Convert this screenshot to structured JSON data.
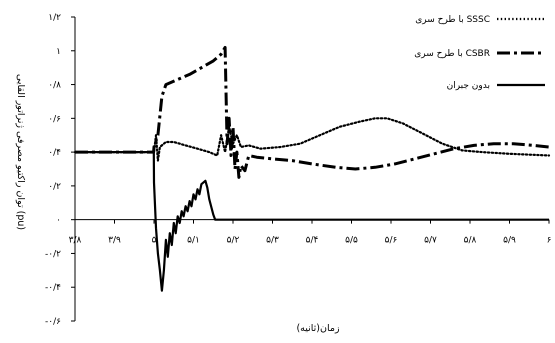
{
  "chart_data": {
    "type": "line",
    "title": "",
    "xlabel": "زمان(ثانیه)",
    "ylabel": "توان راکتیو مصرفی ژنراتور القایی (pu)",
    "xlim": [
      3.8,
      6
    ],
    "ylim": [
      -0.6,
      1.2
    ],
    "x_ticks": [
      3.8,
      3.9,
      5.0,
      5.1,
      5.2,
      5.3,
      5.4,
      5.5,
      5.6,
      5.7,
      5.8,
      5.9,
      6.0
    ],
    "x_tick_labels": [
      "۳/۸",
      "۳/۹",
      "۵",
      "۵/۱",
      "۵/۲",
      "۵/۳",
      "۵/۴",
      "۵/۵",
      "۵/۶",
      "۵/۷",
      "۵/۸",
      "۵/۹",
      "۶"
    ],
    "y_ticks": [
      -0.6,
      -0.4,
      -0.2,
      0,
      0.2,
      0.4,
      0.6,
      0.8,
      1.0,
      1.2
    ],
    "y_tick_labels": [
      "-۰/۶",
      "-۰/۴",
      "-۰/۲",
      "۰",
      "۰/۲",
      "۰/۴",
      "۰/۶",
      "۰/۸",
      "۱",
      "۱/۲"
    ],
    "grid": false,
    "legend_position": "top-right",
    "series": [
      {
        "name": "با طرح سری SSSC",
        "style": "dotted",
        "color": "#000000",
        "points": [
          [
            3.8,
            0.4
          ],
          [
            4.9,
            0.4
          ],
          [
            4.99,
            0.4
          ],
          [
            5.0,
            0.4
          ],
          [
            5.005,
            0.5
          ],
          [
            5.01,
            0.35
          ],
          [
            5.015,
            0.43
          ],
          [
            5.03,
            0.46
          ],
          [
            5.05,
            0.46
          ],
          [
            5.08,
            0.44
          ],
          [
            5.11,
            0.42
          ],
          [
            5.14,
            0.4
          ],
          [
            5.16,
            0.38
          ],
          [
            5.17,
            0.5
          ],
          [
            5.18,
            0.4
          ],
          [
            5.19,
            0.55
          ],
          [
            5.2,
            0.45
          ],
          [
            5.21,
            0.5
          ],
          [
            5.22,
            0.43
          ],
          [
            5.24,
            0.44
          ],
          [
            5.27,
            0.42
          ],
          [
            5.32,
            0.43
          ],
          [
            5.37,
            0.45
          ],
          [
            5.42,
            0.5
          ],
          [
            5.47,
            0.55
          ],
          [
            5.52,
            0.58
          ],
          [
            5.56,
            0.6
          ],
          [
            5.59,
            0.6
          ],
          [
            5.63,
            0.57
          ],
          [
            5.68,
            0.51
          ],
          [
            5.73,
            0.45
          ],
          [
            5.78,
            0.41
          ],
          [
            5.83,
            0.4
          ],
          [
            5.9,
            0.39
          ],
          [
            6.0,
            0.38
          ]
        ]
      },
      {
        "name": "با طرح سری CSBR",
        "style": "dash-dot",
        "color": "#000000",
        "points": [
          [
            3.8,
            0.4
          ],
          [
            4.9,
            0.4
          ],
          [
            4.99,
            0.4
          ],
          [
            5.0,
            0.43
          ],
          [
            5.01,
            0.5
          ],
          [
            5.02,
            0.73
          ],
          [
            5.03,
            0.8
          ],
          [
            5.06,
            0.83
          ],
          [
            5.09,
            0.86
          ],
          [
            5.12,
            0.9
          ],
          [
            5.15,
            0.94
          ],
          [
            5.17,
            0.98
          ],
          [
            5.18,
            1.02
          ],
          [
            5.185,
            0.45
          ],
          [
            5.19,
            0.6
          ],
          [
            5.195,
            0.38
          ],
          [
            5.2,
            0.55
          ],
          [
            5.205,
            0.3
          ],
          [
            5.21,
            0.4
          ],
          [
            5.215,
            0.25
          ],
          [
            5.22,
            0.32
          ],
          [
            5.23,
            0.29
          ],
          [
            5.24,
            0.38
          ],
          [
            5.26,
            0.37
          ],
          [
            5.3,
            0.36
          ],
          [
            5.35,
            0.35
          ],
          [
            5.4,
            0.33
          ],
          [
            5.46,
            0.31
          ],
          [
            5.51,
            0.3
          ],
          [
            5.56,
            0.31
          ],
          [
            5.61,
            0.33
          ],
          [
            5.66,
            0.36
          ],
          [
            5.71,
            0.39
          ],
          [
            5.76,
            0.42
          ],
          [
            5.81,
            0.44
          ],
          [
            5.86,
            0.45
          ],
          [
            5.91,
            0.45
          ],
          [
            5.96,
            0.44
          ],
          [
            6.0,
            0.43
          ]
        ]
      },
      {
        "name": "بدون جبران",
        "style": "solid",
        "color": "#000000",
        "points": [
          [
            3.8,
            0.4
          ],
          [
            4.9,
            0.4
          ],
          [
            4.995,
            0.4
          ],
          [
            5.0,
            0.22
          ],
          [
            5.005,
            -0.05
          ],
          [
            5.01,
            -0.2
          ],
          [
            5.015,
            -0.3
          ],
          [
            5.02,
            -0.42
          ],
          [
            5.025,
            -0.3
          ],
          [
            5.03,
            -0.12
          ],
          [
            5.035,
            -0.22
          ],
          [
            5.04,
            -0.08
          ],
          [
            5.045,
            -0.15
          ],
          [
            5.05,
            -0.02
          ],
          [
            5.055,
            -0.08
          ],
          [
            5.06,
            0.02
          ],
          [
            5.065,
            -0.02
          ],
          [
            5.07,
            0.05
          ],
          [
            5.075,
            0.02
          ],
          [
            5.08,
            0.08
          ],
          [
            5.085,
            0.05
          ],
          [
            5.09,
            0.11
          ],
          [
            5.095,
            0.08
          ],
          [
            5.1,
            0.15
          ],
          [
            5.105,
            0.12
          ],
          [
            5.11,
            0.18
          ],
          [
            5.115,
            0.15
          ],
          [
            5.12,
            0.21
          ],
          [
            5.13,
            0.23
          ],
          [
            5.135,
            0.19
          ],
          [
            5.14,
            0.12
          ],
          [
            5.15,
            0.03
          ],
          [
            5.155,
            0.0
          ],
          [
            6.0,
            0.0
          ]
        ]
      }
    ]
  }
}
